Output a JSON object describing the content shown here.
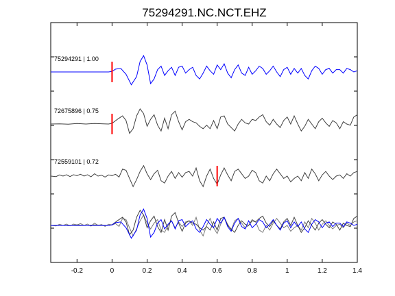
{
  "chart_data": {
    "type": "line",
    "title": "75294291.NC.NCT.EHZ",
    "xlim": [
      -0.35,
      1.4
    ],
    "x_ticks": [
      "-0.2",
      "0",
      "0.2",
      "0.4",
      "0.6",
      "0.8",
      "1",
      "1.2",
      "1.4"
    ],
    "x_tick_values": [
      -0.2,
      0,
      0.2,
      0.4,
      0.6,
      0.8,
      1.0,
      1.2,
      1.4
    ],
    "grid": false,
    "colors": {
      "reference": "#0000ff",
      "correlated": "#404040",
      "overlay": "#7a7a7a",
      "pick": "#ff0000",
      "axis": "#000000"
    },
    "traces": [
      {
        "label": "75294291 | 1.00",
        "color_key": "reference",
        "pick": 0.0,
        "points": [
          [
            -0.35,
            0
          ],
          [
            -0.1,
            0
          ],
          [
            -0.02,
            0
          ],
          [
            0.0,
            0.02
          ],
          [
            0.02,
            0.12
          ],
          [
            0.05,
            0.15
          ],
          [
            0.08,
            -0.1
          ],
          [
            0.11,
            -0.55
          ],
          [
            0.14,
            -0.2
          ],
          [
            0.16,
            0.45
          ],
          [
            0.18,
            0.7
          ],
          [
            0.2,
            0.3
          ],
          [
            0.22,
            -0.5
          ],
          [
            0.24,
            -0.3
          ],
          [
            0.26,
            0.1
          ],
          [
            0.28,
            0.25
          ],
          [
            0.3,
            -0.15
          ],
          [
            0.32,
            0.05
          ],
          [
            0.34,
            0.2
          ],
          [
            0.36,
            -0.15
          ],
          [
            0.38,
            0.2
          ],
          [
            0.4,
            0.25
          ],
          [
            0.42,
            -0.05
          ],
          [
            0.44,
            0.1
          ],
          [
            0.46,
            0.2
          ],
          [
            0.48,
            -0.15
          ],
          [
            0.5,
            -0.3
          ],
          [
            0.52,
            -0.05
          ],
          [
            0.54,
            0.25
          ],
          [
            0.56,
            0.05
          ],
          [
            0.58,
            -0.1
          ],
          [
            0.6,
            0.3
          ],
          [
            0.62,
            0.1
          ],
          [
            0.64,
            0.35
          ],
          [
            0.66,
            -0.05
          ],
          [
            0.68,
            -0.25
          ],
          [
            0.7,
            0.1
          ],
          [
            0.72,
            0.3
          ],
          [
            0.74,
            -0.05
          ],
          [
            0.76,
            -0.15
          ],
          [
            0.78,
            0.2
          ],
          [
            0.8,
            -0.1
          ],
          [
            0.82,
            0.05
          ],
          [
            0.84,
            0.25
          ],
          [
            0.86,
            0.15
          ],
          [
            0.88,
            -0.1
          ],
          [
            0.9,
            0.05
          ],
          [
            0.92,
            0.25
          ],
          [
            0.94,
            0.0
          ],
          [
            0.96,
            -0.2
          ],
          [
            0.98,
            0.1
          ],
          [
            1.0,
            0.2
          ],
          [
            1.02,
            -0.1
          ],
          [
            1.04,
            0.15
          ],
          [
            1.06,
            -0.05
          ],
          [
            1.08,
            0.15
          ],
          [
            1.1,
            -0.15
          ],
          [
            1.12,
            -0.3
          ],
          [
            1.14,
            0.05
          ],
          [
            1.16,
            0.25
          ],
          [
            1.18,
            0.15
          ],
          [
            1.2,
            -0.1
          ],
          [
            1.22,
            0.1
          ],
          [
            1.24,
            0.15
          ],
          [
            1.26,
            -0.05
          ],
          [
            1.28,
            0.1
          ],
          [
            1.3,
            0.1
          ],
          [
            1.32,
            -0.05
          ],
          [
            1.34,
            0.15
          ],
          [
            1.36,
            0.1
          ],
          [
            1.38,
            0.0
          ],
          [
            1.4,
            0.05
          ]
        ]
      },
      {
        "label": "72675896 | 0.75",
        "color_key": "correlated",
        "pick": 0.0,
        "points": [
          [
            -0.35,
            0.0
          ],
          [
            -0.3,
            0.01
          ],
          [
            -0.25,
            -0.01
          ],
          [
            -0.2,
            0.02
          ],
          [
            -0.15,
            0.0
          ],
          [
            -0.1,
            0.02
          ],
          [
            -0.05,
            0.01
          ],
          [
            -0.02,
            0.0
          ],
          [
            0.0,
            0.03
          ],
          [
            0.03,
            0.2
          ],
          [
            0.06,
            0.35
          ],
          [
            0.08,
            0.15
          ],
          [
            0.1,
            -0.4
          ],
          [
            0.12,
            -0.2
          ],
          [
            0.14,
            0.35
          ],
          [
            0.16,
            0.65
          ],
          [
            0.18,
            0.45
          ],
          [
            0.2,
            -0.1
          ],
          [
            0.22,
            0.2
          ],
          [
            0.24,
            0.4
          ],
          [
            0.26,
            -0.05
          ],
          [
            0.28,
            -0.3
          ],
          [
            0.3,
            0.25
          ],
          [
            0.32,
            -0.2
          ],
          [
            0.34,
            0.4
          ],
          [
            0.36,
            0.55
          ],
          [
            0.38,
            0.1
          ],
          [
            0.4,
            -0.25
          ],
          [
            0.42,
            0.1
          ],
          [
            0.44,
            0.2
          ],
          [
            0.46,
            0.1
          ],
          [
            0.48,
            0.05
          ],
          [
            0.5,
            -0.1
          ],
          [
            0.52,
            -0.2
          ],
          [
            0.54,
            -0.05
          ],
          [
            0.56,
            -0.2
          ],
          [
            0.58,
            0.15
          ],
          [
            0.6,
            -0.2
          ],
          [
            0.62,
            0.3
          ],
          [
            0.64,
            0.35
          ],
          [
            0.66,
            0.0
          ],
          [
            0.68,
            -0.15
          ],
          [
            0.7,
            -0.3
          ],
          [
            0.72,
            0.0
          ],
          [
            0.74,
            0.2
          ],
          [
            0.76,
            0.05
          ],
          [
            0.78,
            0.0
          ],
          [
            0.8,
            0.2
          ],
          [
            0.82,
            0.15
          ],
          [
            0.84,
            0.3
          ],
          [
            0.86,
            0.4
          ],
          [
            0.88,
            0.1
          ],
          [
            0.9,
            -0.05
          ],
          [
            0.92,
            0.2
          ],
          [
            0.94,
            0.0
          ],
          [
            0.96,
            -0.15
          ],
          [
            0.98,
            0.15
          ],
          [
            1.0,
            0.3
          ],
          [
            1.02,
            0.0
          ],
          [
            1.04,
            0.35
          ],
          [
            1.06,
            0.0
          ],
          [
            1.08,
            -0.3
          ],
          [
            1.1,
            -0.1
          ],
          [
            1.12,
            0.2
          ],
          [
            1.14,
            0.0
          ],
          [
            1.16,
            -0.2
          ],
          [
            1.18,
            0.1
          ],
          [
            1.2,
            0.25
          ],
          [
            1.22,
            0.05
          ],
          [
            1.24,
            -0.1
          ],
          [
            1.26,
            0.15
          ],
          [
            1.28,
            0.05
          ],
          [
            1.3,
            -0.2
          ],
          [
            1.32,
            0.1
          ],
          [
            1.34,
            0.0
          ],
          [
            1.36,
            -0.05
          ],
          [
            1.38,
            0.3
          ],
          [
            1.4,
            0.4
          ]
        ]
      },
      {
        "label": "72559101 | 0.72",
        "color_key": "correlated",
        "pick": 0.6,
        "points": [
          [
            -0.35,
            0.0
          ],
          [
            -0.32,
            -0.02
          ],
          [
            -0.3,
            0.05
          ],
          [
            -0.28,
            0.0
          ],
          [
            -0.26,
            0.06
          ],
          [
            -0.24,
            -0.02
          ],
          [
            -0.22,
            0.06
          ],
          [
            -0.2,
            0.02
          ],
          [
            -0.18,
            0.08
          ],
          [
            -0.16,
            0.0
          ],
          [
            -0.14,
            0.06
          ],
          [
            -0.12,
            -0.03
          ],
          [
            -0.1,
            0.1
          ],
          [
            -0.08,
            0.0
          ],
          [
            -0.06,
            0.04
          ],
          [
            -0.04,
            -0.04
          ],
          [
            -0.02,
            0.05
          ],
          [
            0.0,
            0.02
          ],
          [
            0.02,
            0.08
          ],
          [
            0.04,
            -0.04
          ],
          [
            0.06,
            0.3
          ],
          [
            0.08,
            0.25
          ],
          [
            0.1,
            -0.1
          ],
          [
            0.12,
            -0.45
          ],
          [
            0.14,
            -0.15
          ],
          [
            0.16,
            0.2
          ],
          [
            0.18,
            0.45
          ],
          [
            0.2,
            0.1
          ],
          [
            0.22,
            -0.15
          ],
          [
            0.24,
            0.1
          ],
          [
            0.26,
            0.25
          ],
          [
            0.28,
            -0.2
          ],
          [
            0.3,
            -0.3
          ],
          [
            0.32,
            0.0
          ],
          [
            0.34,
            0.2
          ],
          [
            0.36,
            -0.1
          ],
          [
            0.38,
            0.15
          ],
          [
            0.4,
            -0.05
          ],
          [
            0.42,
            0.15
          ],
          [
            0.44,
            0.2
          ],
          [
            0.46,
            0.0
          ],
          [
            0.48,
            0.35
          ],
          [
            0.5,
            -0.2
          ],
          [
            0.52,
            -0.45
          ],
          [
            0.54,
            0.0
          ],
          [
            0.56,
            0.3
          ],
          [
            0.58,
            -0.1
          ],
          [
            0.6,
            -0.35
          ],
          [
            0.62,
            0.05
          ],
          [
            0.64,
            0.35
          ],
          [
            0.66,
            0.05
          ],
          [
            0.68,
            -0.2
          ],
          [
            0.7,
            0.2
          ],
          [
            0.72,
            0.3
          ],
          [
            0.74,
            0.1
          ],
          [
            0.76,
            -0.1
          ],
          [
            0.78,
            0.0
          ],
          [
            0.8,
            0.25
          ],
          [
            0.82,
            0.15
          ],
          [
            0.84,
            -0.2
          ],
          [
            0.86,
            -0.3
          ],
          [
            0.88,
            0.0
          ],
          [
            0.9,
            -0.2
          ],
          [
            0.92,
            0.1
          ],
          [
            0.94,
            0.3
          ],
          [
            0.96,
            0.1
          ],
          [
            0.98,
            -0.1
          ],
          [
            1.0,
            0.0
          ],
          [
            1.02,
            -0.25
          ],
          [
            1.04,
            -0.1
          ],
          [
            1.06,
            0.0
          ],
          [
            1.08,
            -0.2
          ],
          [
            1.1,
            0.15
          ],
          [
            1.12,
            -0.1
          ],
          [
            1.14,
            0.3
          ],
          [
            1.16,
            0.1
          ],
          [
            1.18,
            -0.2
          ],
          [
            1.2,
            0.05
          ],
          [
            1.22,
            0.2
          ],
          [
            1.24,
            0.0
          ],
          [
            1.26,
            -0.15
          ],
          [
            1.28,
            0.0
          ],
          [
            1.3,
            0.05
          ],
          [
            1.32,
            -0.1
          ],
          [
            1.34,
            0.1
          ],
          [
            1.36,
            0.0
          ],
          [
            1.38,
            0.15
          ],
          [
            1.4,
            0.2
          ]
        ]
      }
    ]
  }
}
